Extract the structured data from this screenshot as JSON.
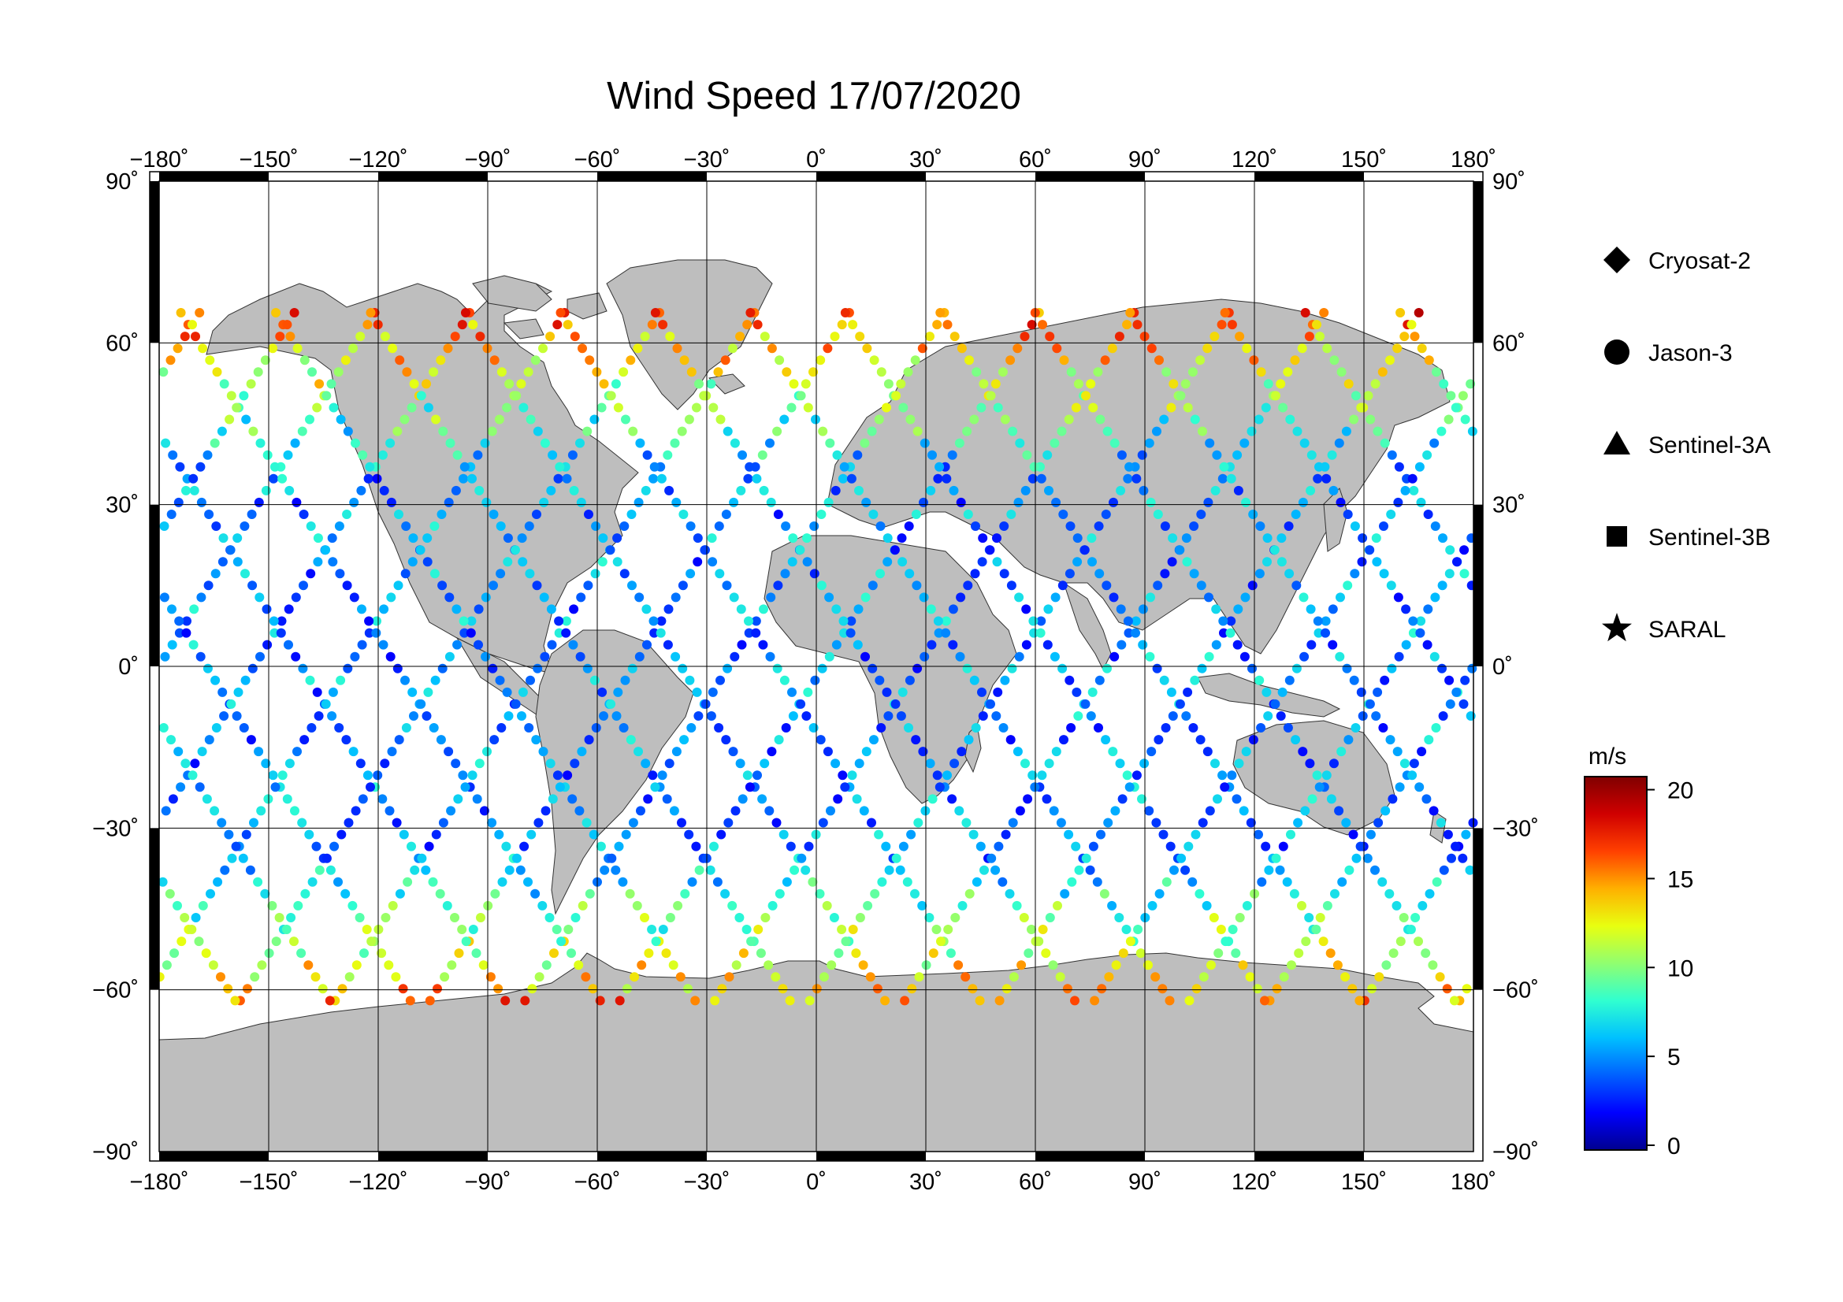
{
  "title": "Wind Speed 17/07/2020",
  "lon_ticks": [
    "−180˚",
    "−150˚",
    "−120˚",
    "−90˚",
    "−60˚",
    "−30˚",
    "0˚",
    "30˚",
    "60˚",
    "90˚",
    "120˚",
    "150˚",
    "180˚"
  ],
  "lat_ticks_left": [
    "90˚",
    "60˚",
    "30˚",
    "0˚",
    "−30˚",
    "−60˚",
    "−90˚"
  ],
  "lat_ticks_right": [
    "90˚",
    "60˚",
    "30˚",
    "0˚",
    "−30˚",
    "−60˚",
    "−90˚"
  ],
  "legend": [
    {
      "label": "Cryosat-2",
      "symbol": "diamond"
    },
    {
      "label": "Jason-3",
      "symbol": "circle"
    },
    {
      "label": "Sentinel-3A",
      "symbol": "triangle"
    },
    {
      "label": "Sentinel-3B",
      "symbol": "square"
    },
    {
      "label": "SARAL",
      "symbol": "star"
    }
  ],
  "colorbar": {
    "unit": "m/s",
    "min": 0,
    "max": 20,
    "ticks": [
      "20",
      "15",
      "10",
      "5",
      "0"
    ],
    "colormap": [
      "#00008f",
      "#0000ff",
      "#0060ff",
      "#00c0ff",
      "#30ffd0",
      "#90ff70",
      "#e8ff10",
      "#ffb000",
      "#ff4000",
      "#d00000",
      "#800000"
    ]
  },
  "map": {
    "land_color": "#bebebe",
    "ocean_color": "#ffffff",
    "grid_color": "#000000",
    "lon_range": [
      -180,
      180
    ],
    "lat_range": [
      -90,
      90
    ]
  }
}
